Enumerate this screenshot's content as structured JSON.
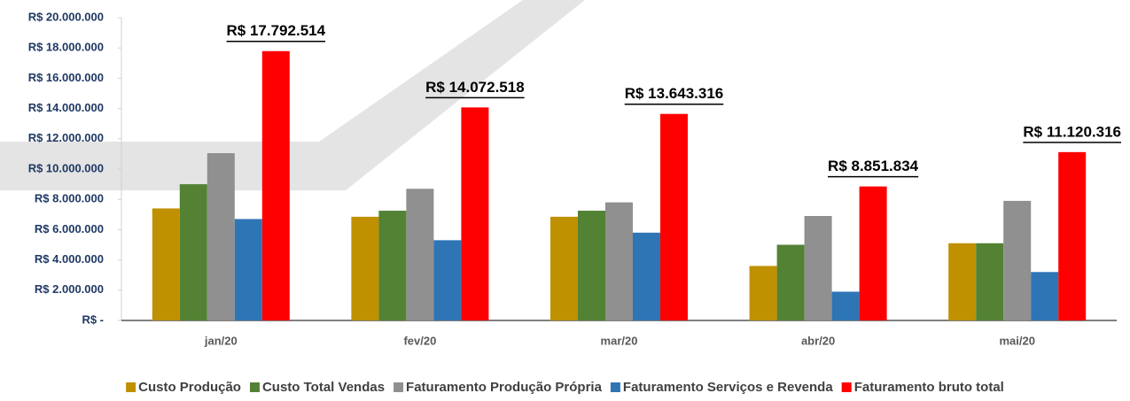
{
  "chart_data": {
    "type": "bar",
    "categories": [
      "jan/20",
      "fev/20",
      "mar/20",
      "abr/20",
      "mai/20"
    ],
    "series": [
      {
        "name": "Custo Produção",
        "color": "#bf9000",
        "values": [
          7400000,
          6850000,
          6850000,
          3600000,
          5100000
        ]
      },
      {
        "name": "Custo Total Vendas",
        "color": "#548235",
        "values": [
          9000000,
          7250000,
          7250000,
          5000000,
          5100000
        ]
      },
      {
        "name": "Faturamento Produção Própria",
        "color": "#909090",
        "values": [
          11050000,
          8700000,
          7800000,
          6900000,
          7900000
        ]
      },
      {
        "name": "Faturamento Serviços e Revenda",
        "color": "#2e75b6",
        "values": [
          6700000,
          5300000,
          5800000,
          1900000,
          3200000
        ]
      },
      {
        "name": "Faturamento bruto total",
        "color": "#ff0000",
        "values": [
          17792514,
          14072518,
          13643316,
          8851834,
          11120316
        ],
        "value_labels": [
          "R$ 17.792.514",
          "R$ 14.072.518",
          "R$ 13.643.316",
          "R$ 8.851.834",
          "R$ 11.120.316"
        ]
      }
    ],
    "ylim": [
      0,
      20000000
    ],
    "yticks": [
      {
        "value": 0,
        "label": "R$ -"
      },
      {
        "value": 2000000,
        "label": "R$ 2.000.000"
      },
      {
        "value": 4000000,
        "label": "R$ 4.000.000"
      },
      {
        "value": 6000000,
        "label": "R$ 6.000.000"
      },
      {
        "value": 8000000,
        "label": "R$ 8.000.000"
      },
      {
        "value": 10000000,
        "label": "R$ 10.000.000"
      },
      {
        "value": 12000000,
        "label": "R$ 12.000.000"
      },
      {
        "value": 14000000,
        "label": "R$ 14.000.000"
      },
      {
        "value": 16000000,
        "label": "R$ 16.000.000"
      },
      {
        "value": 18000000,
        "label": "R$ 18.000.000"
      },
      {
        "value": 20000000,
        "label": "R$ 20.000.000"
      }
    ],
    "grid": false,
    "legend": "bottom"
  }
}
